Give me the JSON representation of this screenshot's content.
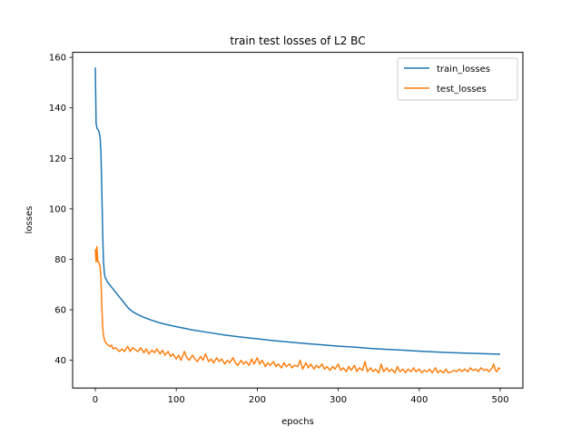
{
  "chart_data": {
    "type": "line",
    "title": "train test losses of L2 BC",
    "xlabel": "epochs",
    "ylabel": "losses",
    "xlim": [
      -28,
      528
    ],
    "ylim": [
      29,
      162
    ],
    "xticks": [
      0,
      100,
      200,
      300,
      400,
      500
    ],
    "yticks": [
      40,
      60,
      80,
      100,
      120,
      140,
      160
    ],
    "grid": false,
    "legend": "top-right",
    "series": [
      {
        "name": "train_losses",
        "color": "#1f77b4",
        "points": [
          [
            0,
            156
          ],
          [
            1,
            134
          ],
          [
            2,
            132
          ],
          [
            3,
            131.5
          ],
          [
            4,
            131
          ],
          [
            5,
            130
          ],
          [
            6,
            128
          ],
          [
            7,
            122
          ],
          [
            8,
            108
          ],
          [
            9,
            92
          ],
          [
            10,
            80
          ],
          [
            11,
            75
          ],
          [
            12,
            73
          ],
          [
            15,
            71
          ],
          [
            20,
            69
          ],
          [
            25,
            67
          ],
          [
            30,
            65
          ],
          [
            35,
            63
          ],
          [
            40,
            61
          ],
          [
            45,
            59.5
          ],
          [
            50,
            58.5
          ],
          [
            60,
            57
          ],
          [
            70,
            55.8
          ],
          [
            80,
            54.8
          ],
          [
            90,
            54
          ],
          [
            100,
            53.3
          ],
          [
            120,
            52
          ],
          [
            140,
            51
          ],
          [
            160,
            50
          ],
          [
            180,
            49.2
          ],
          [
            200,
            48.5
          ],
          [
            220,
            47.8
          ],
          [
            240,
            47.2
          ],
          [
            260,
            46.6
          ],
          [
            280,
            46.1
          ],
          [
            300,
            45.6
          ],
          [
            320,
            45.2
          ],
          [
            340,
            44.7
          ],
          [
            360,
            44.3
          ],
          [
            380,
            44
          ],
          [
            400,
            43.6
          ],
          [
            420,
            43.3
          ],
          [
            440,
            43
          ],
          [
            460,
            42.8
          ],
          [
            480,
            42.6
          ],
          [
            500,
            42.4
          ]
        ]
      },
      {
        "name": "test_losses",
        "color": "#ff7f0e",
        "points": [
          [
            0,
            84
          ],
          [
            1,
            79
          ],
          [
            2,
            85
          ],
          [
            3,
            79
          ],
          [
            4,
            79
          ],
          [
            5,
            78
          ],
          [
            6,
            77
          ],
          [
            7,
            72
          ],
          [
            8,
            62
          ],
          [
            9,
            54
          ],
          [
            10,
            50
          ],
          [
            11,
            48.5
          ],
          [
            12,
            47.5
          ],
          [
            14,
            46.5
          ],
          [
            16,
            46
          ],
          [
            18,
            45.5
          ],
          [
            20,
            46
          ],
          [
            22,
            44.5
          ],
          [
            25,
            45
          ],
          [
            28,
            44
          ],
          [
            30,
            43.5
          ],
          [
            33,
            44.5
          ],
          [
            36,
            43.5
          ],
          [
            40,
            45.5
          ],
          [
            43,
            43.5
          ],
          [
            46,
            45
          ],
          [
            50,
            44
          ],
          [
            53,
            43.5
          ],
          [
            56,
            45
          ],
          [
            60,
            43
          ],
          [
            63,
            44.5
          ],
          [
            66,
            42.5
          ],
          [
            70,
            44
          ],
          [
            73,
            43
          ],
          [
            76,
            44.5
          ],
          [
            80,
            42.5
          ],
          [
            83,
            44
          ],
          [
            86,
            42
          ],
          [
            90,
            43.5
          ],
          [
            93,
            41.5
          ],
          [
            96,
            42.5
          ],
          [
            100,
            40.5
          ],
          [
            103,
            42
          ],
          [
            106,
            40
          ],
          [
            110,
            43.5
          ],
          [
            113,
            41
          ],
          [
            116,
            40
          ],
          [
            120,
            42
          ],
          [
            123,
            40.5
          ],
          [
            126,
            39.5
          ],
          [
            130,
            41.5
          ],
          [
            133,
            40
          ],
          [
            136,
            42.5
          ],
          [
            140,
            39.5
          ],
          [
            143,
            40.5
          ],
          [
            146,
            39
          ],
          [
            150,
            41
          ],
          [
            153,
            39.5
          ],
          [
            156,
            40.5
          ],
          [
            160,
            38.5
          ],
          [
            163,
            40
          ],
          [
            166,
            39
          ],
          [
            170,
            41
          ],
          [
            173,
            39
          ],
          [
            176,
            38
          ],
          [
            180,
            40
          ],
          [
            183,
            38.5
          ],
          [
            186,
            39.5
          ],
          [
            190,
            38
          ],
          [
            193,
            40.5
          ],
          [
            196,
            38.5
          ],
          [
            200,
            41
          ],
          [
            203,
            38.5
          ],
          [
            206,
            40
          ],
          [
            210,
            37.5
          ],
          [
            213,
            39
          ],
          [
            216,
            38
          ],
          [
            220,
            39.5
          ],
          [
            223,
            37.5
          ],
          [
            226,
            38.5
          ],
          [
            230,
            37
          ],
          [
            233,
            39
          ],
          [
            236,
            37.5
          ],
          [
            240,
            38.5
          ],
          [
            243,
            37
          ],
          [
            246,
            38
          ],
          [
            250,
            37.5
          ],
          [
            253,
            40
          ],
          [
            256,
            36.5
          ],
          [
            260,
            39
          ],
          [
            263,
            37
          ],
          [
            266,
            38.5
          ],
          [
            270,
            36.5
          ],
          [
            273,
            38
          ],
          [
            276,
            37
          ],
          [
            280,
            38.5
          ],
          [
            283,
            36.5
          ],
          [
            286,
            37.5
          ],
          [
            290,
            36
          ],
          [
            293,
            37.5
          ],
          [
            296,
            36.5
          ],
          [
            300,
            38.5
          ],
          [
            303,
            36
          ],
          [
            306,
            37
          ],
          [
            310,
            35.5
          ],
          [
            313,
            37.5
          ],
          [
            316,
            36
          ],
          [
            320,
            38
          ],
          [
            323,
            35.5
          ],
          [
            326,
            37
          ],
          [
            330,
            36
          ],
          [
            333,
            39.5
          ],
          [
            336,
            35.5
          ],
          [
            340,
            37
          ],
          [
            343,
            35.5
          ],
          [
            346,
            36.5
          ],
          [
            350,
            35
          ],
          [
            353,
            38.5
          ],
          [
            356,
            35.5
          ],
          [
            360,
            37
          ],
          [
            363,
            35.5
          ],
          [
            366,
            36.5
          ],
          [
            370,
            35
          ],
          [
            373,
            37.5
          ],
          [
            376,
            35.5
          ],
          [
            380,
            36.5
          ],
          [
            383,
            35
          ],
          [
            386,
            36.5
          ],
          [
            390,
            35.5
          ],
          [
            393,
            37
          ],
          [
            396,
            35.5
          ],
          [
            400,
            36.5
          ],
          [
            403,
            35
          ],
          [
            406,
            36
          ],
          [
            410,
            35.5
          ],
          [
            413,
            36.5
          ],
          [
            416,
            35
          ],
          [
            420,
            37
          ],
          [
            423,
            35
          ],
          [
            426,
            36
          ],
          [
            430,
            35
          ],
          [
            433,
            36.5
          ],
          [
            436,
            35
          ],
          [
            440,
            35.5
          ],
          [
            443,
            36
          ],
          [
            446,
            35.5
          ],
          [
            450,
            36.5
          ],
          [
            453,
            35.5
          ],
          [
            456,
            36.5
          ],
          [
            460,
            35.5
          ],
          [
            463,
            37
          ],
          [
            466,
            36
          ],
          [
            470,
            36.5
          ],
          [
            473,
            35.5
          ],
          [
            476,
            37
          ],
          [
            480,
            36
          ],
          [
            483,
            36.5
          ],
          [
            486,
            35.5
          ],
          [
            490,
            37
          ],
          [
            492,
            38.5
          ],
          [
            494,
            36
          ],
          [
            496,
            35.5
          ],
          [
            498,
            37
          ],
          [
            500,
            36.5
          ]
        ]
      }
    ]
  }
}
